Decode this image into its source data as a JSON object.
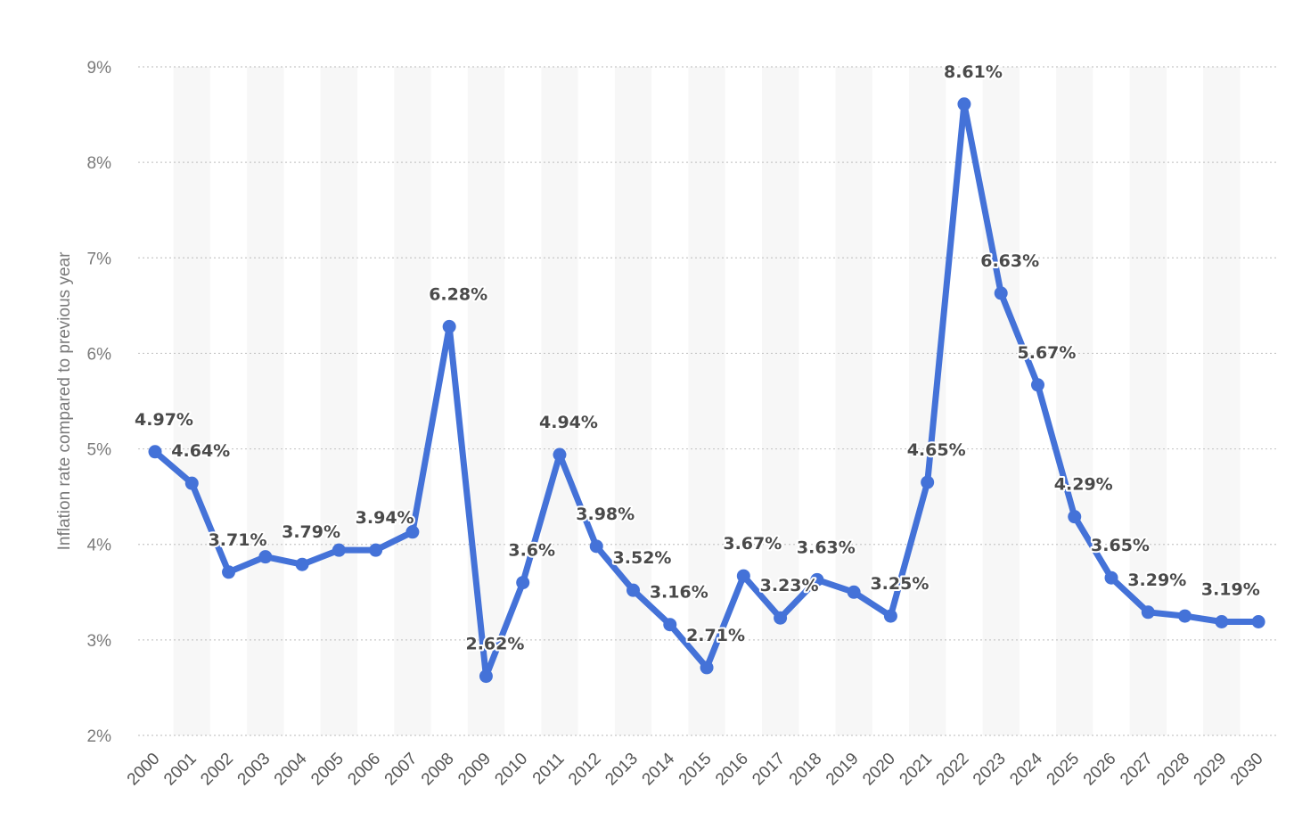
{
  "chart_data": {
    "type": "line",
    "title": "",
    "xlabel": "",
    "ylabel": "Inflation rate compared to previous year",
    "ylim": [
      2,
      9
    ],
    "y_ticks": [
      "2%",
      "3%",
      "4%",
      "5%",
      "6%",
      "7%",
      "8%",
      "9%"
    ],
    "grid": "horizontal-dotted",
    "categories": [
      "2000",
      "2001",
      "2002",
      "2003",
      "2004",
      "2005",
      "2006",
      "2007",
      "2008",
      "2009",
      "2010",
      "2011",
      "2012",
      "2013",
      "2014",
      "2015",
      "2016",
      "2017",
      "2018",
      "2019",
      "2020",
      "2021",
      "2022",
      "2023",
      "2024",
      "2025",
      "2026",
      "2027",
      "2028",
      "2029",
      "2030"
    ],
    "values": [
      4.97,
      4.64,
      3.71,
      3.87,
      3.79,
      3.94,
      3.94,
      4.13,
      6.28,
      2.62,
      3.6,
      4.94,
      3.98,
      3.52,
      3.16,
      2.71,
      3.67,
      3.23,
      3.63,
      3.5,
      3.25,
      4.65,
      8.61,
      6.63,
      5.67,
      4.29,
      3.65,
      3.29,
      3.25,
      3.19,
      3.19
    ],
    "labels": [
      {
        "index": 0,
        "text": "4.97%"
      },
      {
        "index": 1,
        "text": "4.64%"
      },
      {
        "index": 2,
        "text": "3.71%"
      },
      {
        "index": 4,
        "text": "3.79%"
      },
      {
        "index": 6,
        "text": "3.94%"
      },
      {
        "index": 8,
        "text": "6.28%"
      },
      {
        "index": 9,
        "text": "2.62%"
      },
      {
        "index": 10,
        "text": "3.6%"
      },
      {
        "index": 11,
        "text": "4.94%"
      },
      {
        "index": 12,
        "text": "3.98%"
      },
      {
        "index": 13,
        "text": "3.52%"
      },
      {
        "index": 14,
        "text": "3.16%"
      },
      {
        "index": 15,
        "text": "2.71%"
      },
      {
        "index": 16,
        "text": "3.67%"
      },
      {
        "index": 17,
        "text": "3.23%"
      },
      {
        "index": 18,
        "text": "3.63%"
      },
      {
        "index": 20,
        "text": "3.25%"
      },
      {
        "index": 21,
        "text": "4.65%"
      },
      {
        "index": 22,
        "text": "8.61%"
      },
      {
        "index": 23,
        "text": "6.63%"
      },
      {
        "index": 24,
        "text": "5.67%"
      },
      {
        "index": 25,
        "text": "4.29%"
      },
      {
        "index": 26,
        "text": "3.65%"
      },
      {
        "index": 27,
        "text": "3.29%"
      },
      {
        "index": 29,
        "text": "3.19%"
      }
    ],
    "colors": {
      "line": "#4472d8",
      "band": "#f7f7f7",
      "grid": "#c8c8c8",
      "label": "#4a4a4a",
      "tick": "#7a7a7a"
    }
  }
}
